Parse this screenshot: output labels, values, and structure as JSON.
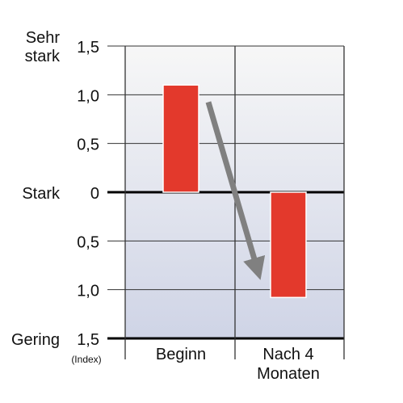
{
  "chart_data": {
    "type": "bar",
    "categories": [
      "Beginn",
      "Nach 4 Monaten"
    ],
    "category_label_lines": [
      [
        "Beginn"
      ],
      [
        "Nach 4",
        "Monaten"
      ]
    ],
    "values": [
      1.1,
      -1.08
    ],
    "ylim": [
      -1.5,
      1.5
    ],
    "y_ticks": [
      {
        "value": 1.5,
        "label": "1,5"
      },
      {
        "value": 1.0,
        "label": "1,0"
      },
      {
        "value": 0.5,
        "label": "0,5"
      },
      {
        "value": 0.0,
        "label": "0"
      },
      {
        "value": -0.5,
        "label": "0,5"
      },
      {
        "value": -1.0,
        "label": "1,0"
      },
      {
        "value": -1.5,
        "label": "1,5"
      }
    ],
    "y_category_labels": [
      {
        "value": 1.5,
        "lines": [
          "Sehr",
          "stark"
        ]
      },
      {
        "value": 0.0,
        "lines": [
          "Stark"
        ]
      },
      {
        "value": -1.5,
        "lines": [
          "Gering"
        ]
      }
    ],
    "index_note": "(Index)",
    "grid": true,
    "arrow": {
      "from": {
        "category": 0,
        "value": 0.95
      },
      "to": {
        "category": 1,
        "value": -0.9
      }
    },
    "colors": {
      "bar": "#e3392c",
      "arrow": "#808080",
      "bg_top": "#f7f7f7",
      "bg_bottom": "#cfd4e6",
      "grid": "#333333",
      "zero_line": "#000000"
    }
  }
}
